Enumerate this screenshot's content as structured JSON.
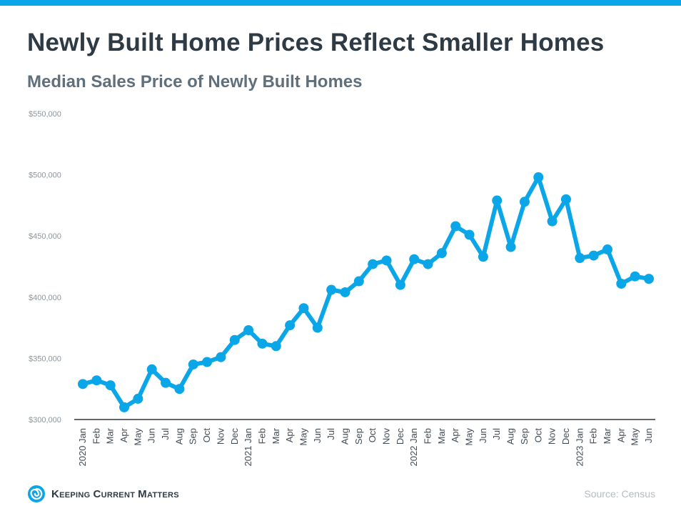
{
  "header": {
    "title": "Newly Built Home Prices Reflect Smaller Homes",
    "subtitle": "Median Sales Price of Newly Built Homes"
  },
  "footer": {
    "brand": "Keeping Current Matters",
    "source": "Source: Census"
  },
  "colors": {
    "accent": "#0aa6e8",
    "line": "#0aa6e8",
    "axis": "#333333",
    "text_dark": "#2e3a44",
    "text_muted": "#8c959d"
  },
  "chart_data": {
    "type": "line",
    "title": "Median Sales Price of Newly Built Homes",
    "xlabel": "",
    "ylabel": "",
    "ylim": [
      300000,
      550000
    ],
    "yticks": [
      300000,
      350000,
      400000,
      450000,
      500000,
      550000
    ],
    "ytick_labels": [
      "$300,000",
      "$350,000",
      "$400,000",
      "$450,000",
      "$500,000",
      "$550,000"
    ],
    "grid": false,
    "categories": [
      "2020 Jan",
      "Feb",
      "Mar",
      "Apr",
      "May",
      "Jun",
      "Jul",
      "Aug",
      "Sep",
      "Oct",
      "Nov",
      "Dec",
      "2021 Jan",
      "Feb",
      "Mar",
      "Apr",
      "May",
      "Jun",
      "Jul",
      "Aug",
      "Sep",
      "Oct",
      "Nov",
      "Dec",
      "2022 Jan",
      "Feb",
      "Mar",
      "Apr",
      "May",
      "Jun",
      "Jul",
      "Aug",
      "Sep",
      "Oct",
      "Nov",
      "Dec",
      "2023 Jan",
      "Feb",
      "Mar",
      "Apr",
      "May",
      "Jun"
    ],
    "series": [
      {
        "name": "Median Sales Price",
        "values": [
          329000,
          332000,
          328000,
          310000,
          317000,
          341000,
          330000,
          325000,
          345000,
          347000,
          351000,
          365000,
          373000,
          362000,
          360000,
          377000,
          391000,
          375000,
          406000,
          404000,
          413000,
          427000,
          430000,
          410000,
          431000,
          427000,
          436000,
          458000,
          451000,
          433000,
          479000,
          441000,
          478000,
          498000,
          462000,
          480000,
          432000,
          434000,
          439000,
          411000,
          417000,
          415000
        ]
      }
    ]
  }
}
